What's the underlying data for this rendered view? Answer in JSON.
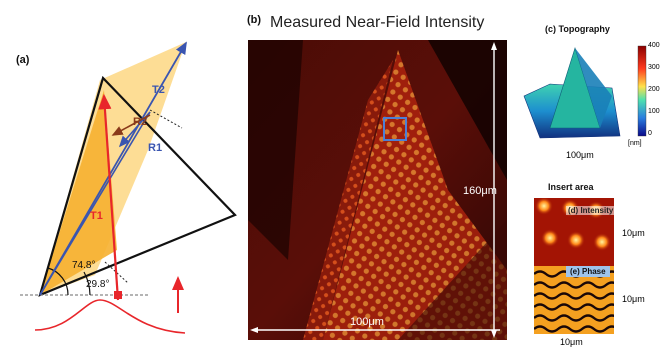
{
  "panel_a": {
    "label": "(a)",
    "beams": [
      "T1",
      "T2",
      "R1",
      "R2"
    ],
    "angle_large": "74.8°",
    "angle_small": "29.8°"
  },
  "panel_b": {
    "label": "(b)",
    "title": "Measured Near-Field Intensity",
    "height_label": "160μm",
    "width_label": "100μm"
  },
  "panel_c": {
    "title": "(c) Topography",
    "scale_label": "100μm",
    "colorbar_ticks": [
      "400",
      "300",
      "200",
      "100",
      "0"
    ],
    "colorbar_unit": "[nm]"
  },
  "insert": {
    "title": "Insert area",
    "intensity_label": "(d) Intensity",
    "phase_label": "(e) Phase",
    "size_top": "10μm",
    "size_bottom": "10μm",
    "size_width": "10μm"
  },
  "colors": {
    "prism_fill": "#fdd98a",
    "prism_dark": "#f6b030",
    "t1_beam": "#e8262b",
    "blue_beam": "#3a55b0",
    "r2_beam": "#8a3a1a"
  }
}
